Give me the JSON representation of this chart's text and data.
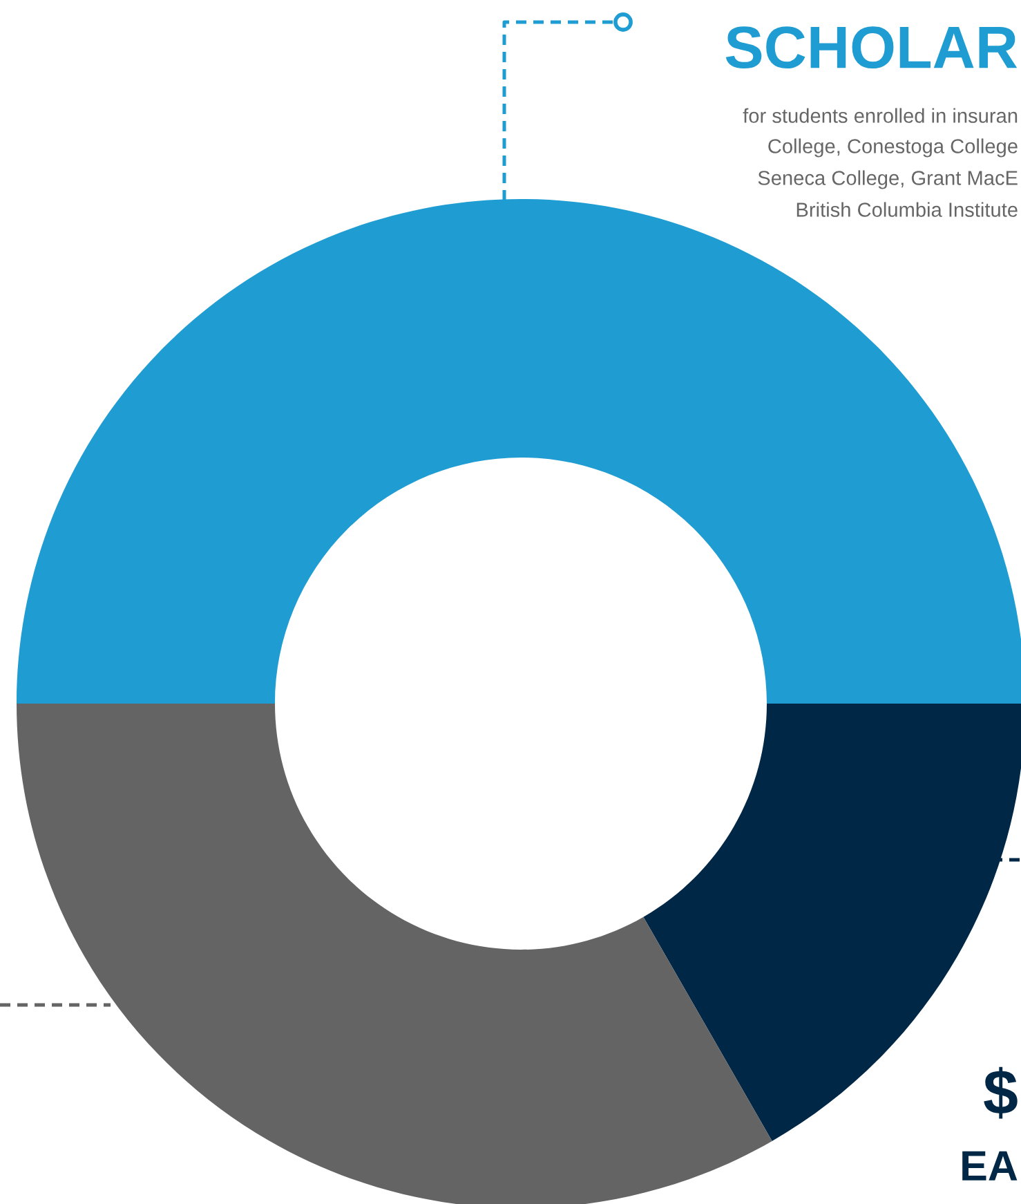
{
  "chart_data": {
    "type": "donut",
    "categories": [
      null,
      null,
      null
    ],
    "values": [
      50,
      16.7,
      33.3
    ],
    "colors": [
      "#1f9dd3",
      "#002846",
      "#646464"
    ],
    "annotations": [
      "SCHOLAR",
      "for students enrolled in insuran",
      "College, Conestoga College",
      "Seneca College, Grant MacE",
      "British Columbia Institute",
      "$",
      "EA"
    ]
  }
}
